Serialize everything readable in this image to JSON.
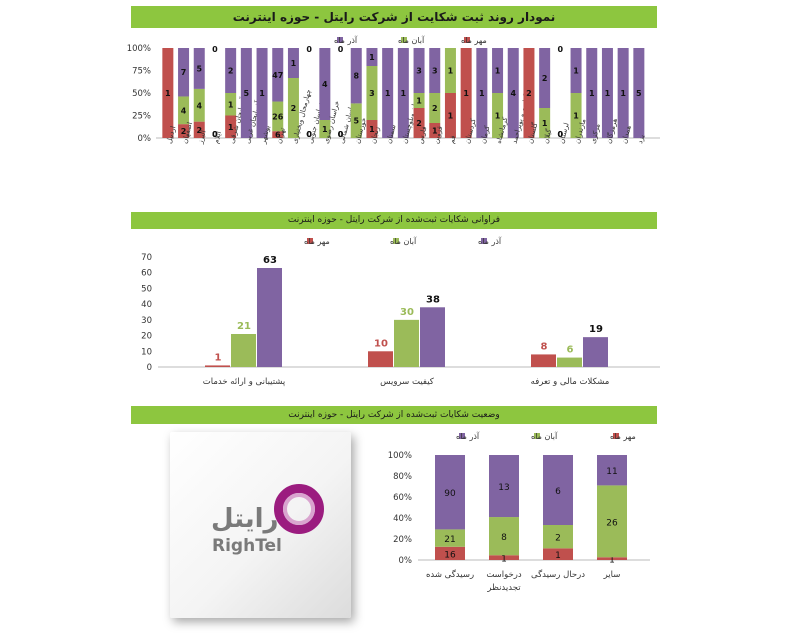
{
  "colors": {
    "mehr": "#c0504d",
    "aban": "#9bbb59",
    "azar": "#8064a2",
    "banner": "#8dc63f"
  },
  "chart_data": [
    {
      "type": "bar",
      "stacked": "percent",
      "title": "نمودار روند ثبت شکایت از شرکت رایتل - حوزه اینترنت",
      "legend": [
        "مهر ماه",
        "آبان ماه",
        "آذر ماه"
      ],
      "legend_position": "top",
      "yticks": [
        "0%",
        "25%",
        "50%",
        "75%",
        "100%"
      ],
      "categories": [
        "اردبیل",
        "اصفهان",
        "البرز",
        "ایلام",
        "آذربایجان شرقی",
        "آذربایجان غربی",
        "بوشهر",
        "تهران",
        "چهارمحال وبختیاری",
        "خراسان جنوبی",
        "خراسان رضوی",
        "خراسان شمالی",
        "خوزستان",
        "زنجان",
        "سمنان",
        "سیستان وبلوچستان",
        "فارس",
        "قزوین",
        "قم",
        "کردستان",
        "کرمان",
        "کرمانشاه",
        "کهگیلویه و بویراحمد",
        "گلستان",
        "گیلان",
        "لرستان",
        "مازندران",
        "مرکزی",
        "هرمزگان",
        "همدان",
        "یزد"
      ],
      "series": [
        {
          "name": "مهر ماه",
          "values": [
            1,
            2,
            2,
            0,
            1,
            0,
            0,
            6,
            0,
            0,
            0,
            0,
            0,
            1,
            0,
            0,
            2,
            1,
            1,
            1,
            0,
            0,
            0,
            2,
            0,
            0,
            0,
            0,
            0,
            0,
            0
          ]
        },
        {
          "name": "آبان ماه",
          "values": [
            0,
            4,
            4,
            0,
            1,
            0,
            0,
            26,
            2,
            0,
            1,
            0,
            5,
            3,
            0,
            0,
            1,
            2,
            1,
            0,
            0,
            1,
            0,
            0,
            1,
            0,
            1,
            0,
            0,
            0,
            0
          ]
        },
        {
          "name": "آذر ماه",
          "values": [
            0,
            7,
            5,
            0,
            2,
            5,
            1,
            47,
            1,
            0,
            4,
            0,
            8,
            1,
            1,
            1,
            3,
            3,
            0,
            0,
            1,
            1,
            4,
            0,
            2,
            0,
            1,
            1,
            1,
            1,
            5
          ]
        }
      ]
    },
    {
      "type": "bar",
      "title": "فراوانی شکایات ثبت‌شده از شرکت رایتل - حوزه اینترنت",
      "legend": [
        "مهر ماه",
        "آبان ماه",
        "آذر ماه"
      ],
      "legend_position": "top",
      "ylim": [
        0,
        70
      ],
      "yticks": [
        "0",
        "10",
        "20",
        "30",
        "40",
        "50",
        "60",
        "70"
      ],
      "categories": [
        "پشتیبانی و ارائه خدمات",
        "کیفیت سرویس",
        "مشکلات مالی و تعرفه"
      ],
      "series": [
        {
          "name": "مهر ماه",
          "values": [
            1,
            10,
            8
          ]
        },
        {
          "name": "آبان ماه",
          "values": [
            21,
            30,
            6
          ]
        },
        {
          "name": "آذر ماه",
          "values": [
            63,
            38,
            19
          ]
        }
      ]
    },
    {
      "type": "bar",
      "stacked": "percent",
      "title": "وضعیت شکایات ثبت‌شده از شرکت رایتل - حوزه اینترنت",
      "legend": [
        "مهر ماه",
        "آبان ماه",
        "آذر ماه"
      ],
      "legend_position": "top",
      "yticks": [
        "0%",
        "20%",
        "40%",
        "60%",
        "80%",
        "100%"
      ],
      "categories": [
        "رسیدگی شده",
        "درخواست تجدیدنظر",
        "درحال رسیدگی",
        "سایر"
      ],
      "series": [
        {
          "name": "مهر ماه",
          "values": [
            16,
            1,
            1,
            1
          ]
        },
        {
          "name": "آبان ماه",
          "values": [
            21,
            8,
            2,
            26
          ]
        },
        {
          "name": "آذر ماه",
          "values": [
            90,
            13,
            6,
            11
          ]
        }
      ]
    }
  ],
  "logo": {
    "fa": "رایتل",
    "en": "RighTel"
  }
}
